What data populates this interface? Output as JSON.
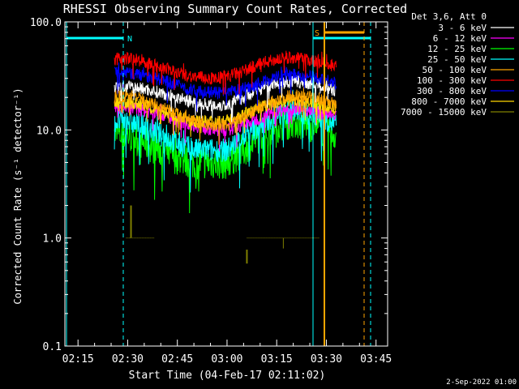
{
  "chart_data": {
    "type": "line",
    "title": "RHESSI Observing Summary Count Rates, Corrected",
    "xlabel": "Start Time (04-Feb-17 02:11:02)",
    "ylabel": "Corrected Count Rate (s⁻¹ detector⁻¹)",
    "y_scale": "log",
    "ylim": [
      0.1,
      100.0
    ],
    "xlim": [
      "02:11:02",
      "03:48:30"
    ],
    "x_ticks": [
      "02:15",
      "02:30",
      "02:45",
      "03:00",
      "03:15",
      "03:30",
      "03:45"
    ],
    "y_ticks": [
      "0.1",
      "1.0",
      "10.0",
      "100.0"
    ],
    "grid": false,
    "legend_title": "Det 3,6, Att 0",
    "legend_position": "top-right",
    "footer_date": "2-Sep-2022 01:00",
    "x_unit": "minutes after 02:00",
    "series": [
      {
        "name": "3 - 6 keV",
        "color": "#ffffff",
        "x": [
          26,
          30,
          35,
          40,
          45,
          50,
          55,
          60,
          65,
          70,
          75,
          80,
          85,
          89,
          93
        ],
        "values": [
          25,
          25,
          24,
          22,
          20,
          18,
          17,
          17,
          20,
          24,
          27,
          28,
          27,
          26,
          23
        ]
      },
      {
        "name": "6 - 12 keV",
        "color": "#ff00ff",
        "x": [
          26,
          30,
          35,
          40,
          45,
          50,
          55,
          60,
          65,
          70,
          75,
          80,
          85,
          89,
          93
        ],
        "values": [
          16,
          16,
          15,
          14,
          12,
          11,
          10,
          10,
          11,
          13,
          15,
          16,
          15,
          14,
          13
        ]
      },
      {
        "name": "12 - 25 keV",
        "color": "#00ff00",
        "x": [
          26,
          30,
          35,
          40,
          45,
          50,
          55,
          60,
          65,
          70,
          75,
          80,
          85,
          89,
          93
        ],
        "values": [
          9,
          9,
          7.5,
          6.5,
          5.5,
          5,
          5,
          5,
          6.5,
          9,
          11,
          12,
          11,
          10,
          9
        ]
      },
      {
        "name": "25 - 50 keV",
        "color": "#00ffff",
        "x": [
          26,
          30,
          35,
          40,
          45,
          50,
          55,
          60,
          65,
          70,
          75,
          80,
          85,
          89,
          93
        ],
        "values": [
          12,
          12,
          10.5,
          9,
          7.5,
          6.5,
          6.5,
          6.5,
          8.5,
          11,
          13.5,
          15,
          14,
          13,
          11
        ]
      },
      {
        "name": "50 - 100 keV",
        "color": "#ffa500",
        "x": [
          26,
          30,
          35,
          40,
          45,
          50,
          55,
          60,
          65,
          70,
          75,
          80,
          85,
          89,
          93
        ],
        "values": [
          21,
          21,
          19,
          16,
          14,
          12,
          11,
          11,
          13,
          16,
          19,
          21,
          20,
          19,
          17
        ]
      },
      {
        "name": "100 - 300 keV",
        "color": "#ff0000",
        "x": [
          26,
          30,
          35,
          40,
          45,
          50,
          55,
          60,
          65,
          70,
          75,
          80,
          85,
          89,
          93
        ],
        "values": [
          45,
          46,
          43,
          38,
          34,
          31,
          30,
          31,
          35,
          41,
          45,
          47,
          44,
          42,
          38
        ]
      },
      {
        "name": "300 - 800 keV",
        "color": "#0000ff",
        "x": [
          26,
          30,
          35,
          40,
          45,
          50,
          55,
          60,
          65,
          70,
          75,
          80,
          85,
          89,
          93
        ],
        "values": [
          34,
          34,
          32,
          29,
          26,
          23,
          22,
          22,
          24,
          27,
          31,
          33,
          31,
          30,
          27
        ]
      },
      {
        "name": "800 - 7000 keV",
        "color": "#ffd700",
        "x": [
          26,
          30,
          35,
          40,
          45,
          50,
          55,
          60,
          65,
          70,
          75,
          80,
          85,
          89,
          93
        ],
        "values": [
          18,
          18,
          17,
          15,
          13,
          12,
          12,
          12,
          14,
          16,
          18,
          19,
          18,
          17,
          15
        ]
      },
      {
        "name": "7000 - 15000 keV",
        "color": "#808000",
        "x": [
          29.5,
          31,
          40,
          52,
          60,
          70,
          73,
          78,
          85
        ],
        "values": [
          1.0,
          1.0,
          1.0,
          null,
          null,
          1.0,
          1.0,
          1.0,
          1.0
        ]
      }
    ],
    "annotations": [
      {
        "text": "N",
        "color": "#00ffff"
      },
      {
        "text": "S",
        "color": "#ffa500"
      }
    ]
  }
}
